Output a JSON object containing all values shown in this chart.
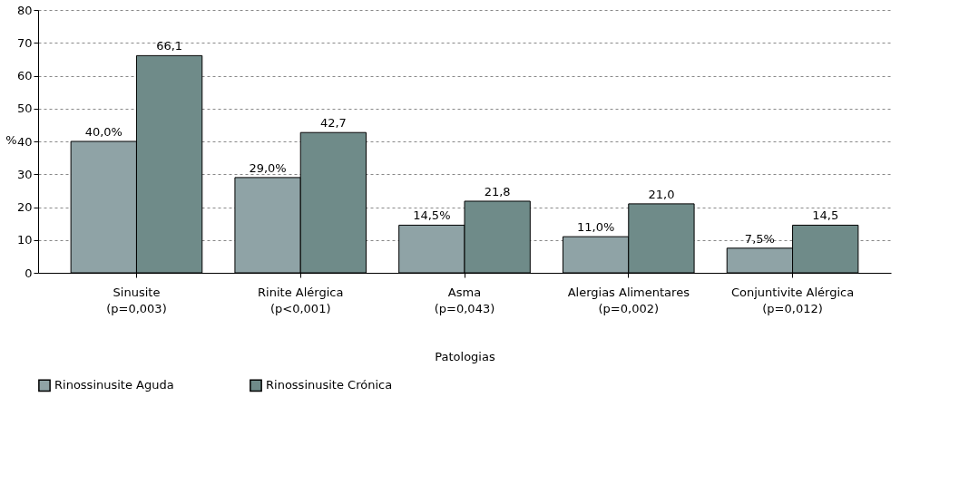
{
  "chart_data": {
    "type": "bar",
    "xlabel": "Patologias",
    "ylabel": "%",
    "categories": [
      "Sinusite\n(p=0,003)",
      "Rinite Alérgica\n(p<0,001)",
      "Asma\n(p=0,043)",
      "Alergias Alimentares\n(p=0,002)",
      "Conjuntivite Alérgica\n(p=0,012)"
    ],
    "series": [
      {
        "name": "Rinossinusite Aguda",
        "color": "#8fa3a6",
        "values": [
          40.0,
          29.0,
          14.5,
          11.0,
          7.5
        ],
        "value_labels": [
          "40,0%",
          "29,0%",
          "14,5%",
          "11,0%",
          "7,5%"
        ]
      },
      {
        "name": "Rinossinusite Crónica",
        "color": "#6f8b89",
        "values": [
          66.1,
          42.7,
          21.8,
          21.0,
          14.5
        ],
        "value_labels": [
          "66,1",
          "42,7",
          "21,8",
          "21,0",
          "14,5"
        ]
      }
    ],
    "ylim": [
      0,
      80
    ],
    "yticks": [
      0,
      10,
      20,
      30,
      40,
      50,
      60,
      70,
      80
    ],
    "grid": "y",
    "legend": "bottom"
  }
}
